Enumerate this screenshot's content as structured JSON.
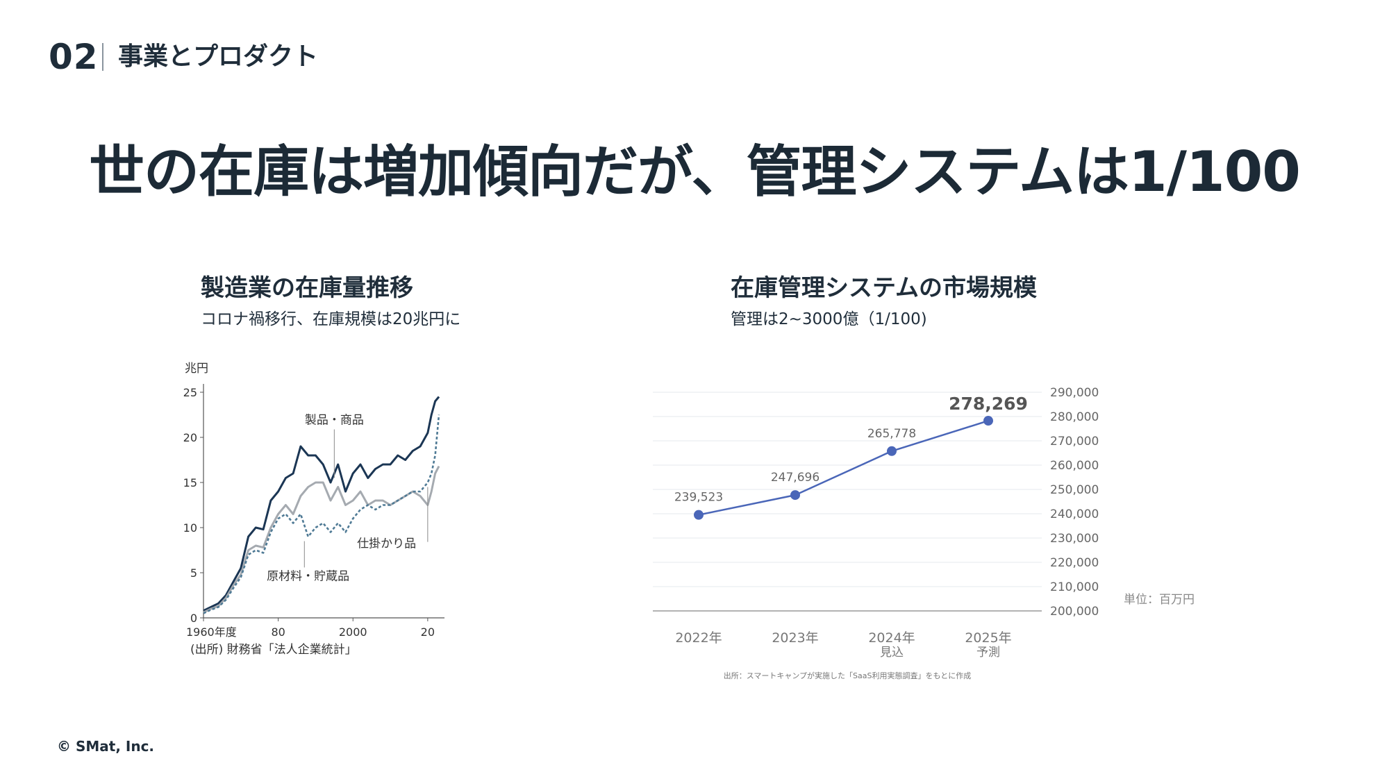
{
  "header": {
    "section_number": "02",
    "section_title": "事業とプロダクト"
  },
  "headline": "世の在庫は増加傾向だが、管理システムは1/100",
  "left_panel": {
    "title": "製造業の在庫量推移",
    "subtitle": "コロナ禍移行、在庫規模は20兆円に"
  },
  "right_panel": {
    "title": "在庫管理システムの市場規模",
    "subtitle": "管理は2~3000億（1/100)"
  },
  "footer": {
    "copyright": "© SMat, Inc."
  },
  "colors": {
    "text": "#1f2d3a",
    "dark_series": "#1b3654",
    "gray_series": "#a5aab0",
    "dotted_series": "#4f7a95",
    "market_line": "#4a66b8"
  },
  "chart_data": [
    {
      "type": "line",
      "title": "製造業の在庫量推移",
      "ylabel": "兆円",
      "ylim": [
        0,
        25
      ],
      "yticks": [
        0,
        5,
        10,
        15,
        20,
        25
      ],
      "xlim": [
        1960,
        2023
      ],
      "xtick_values": [
        1960,
        1980,
        2000,
        2020
      ],
      "xtick_labels": [
        "1960年度",
        "80",
        "2000",
        "20"
      ],
      "source": "(出所) 財務省「法人企業統計」",
      "x": [
        1960,
        1962,
        1964,
        1966,
        1968,
        1970,
        1972,
        1974,
        1976,
        1978,
        1980,
        1982,
        1984,
        1986,
        1988,
        1990,
        1992,
        1994,
        1996,
        1998,
        2000,
        2002,
        2004,
        2006,
        2008,
        2010,
        2012,
        2014,
        2016,
        2018,
        2020,
        2021,
        2022,
        2023
      ],
      "series": [
        {
          "name": "製品・商品",
          "label": "製品・商品",
          "label_value": 21.5,
          "label_x": 1995,
          "leader_y": 15.5,
          "values": [
            0.8,
            1.2,
            1.6,
            2.5,
            4,
            5.5,
            9,
            10,
            9.8,
            13,
            14,
            15.5,
            16,
            19,
            18,
            18,
            17,
            15,
            17,
            14,
            16,
            17,
            15.5,
            16.5,
            17,
            17,
            18,
            17.5,
            18.5,
            19,
            20.5,
            22.5,
            24,
            24.5
          ]
        },
        {
          "name": "仕掛かり品",
          "label": "仕掛かり品",
          "label_value": 7.8,
          "label_x": 2009,
          "leader_y": 14.5,
          "values": [
            0.6,
            1,
            1.3,
            2.2,
            3.6,
            4.8,
            7.5,
            8,
            7.8,
            10,
            11.5,
            12.5,
            11.5,
            13.5,
            14.5,
            15,
            15,
            13,
            14.5,
            12.5,
            13,
            14,
            12.5,
            13,
            13,
            12.5,
            13,
            13.5,
            14,
            13.5,
            12.5,
            14,
            16,
            16.8
          ]
        },
        {
          "name": "原材料・貯蔵品",
          "label": "原材料・貯蔵品",
          "label_value": 4.2,
          "label_x": 1988,
          "leader_y": 8.5,
          "values": [
            0.5,
            0.9,
            1.2,
            2,
            3.3,
            4.5,
            7,
            7.5,
            7.2,
            9.5,
            11,
            11.5,
            10.5,
            11.5,
            9,
            10,
            10.5,
            9.5,
            10.5,
            9.5,
            11,
            12,
            12.5,
            12,
            12.5,
            12.5,
            13,
            13.5,
            14,
            14,
            15,
            16,
            18,
            22.5
          ]
        }
      ]
    },
    {
      "type": "line",
      "title": "在庫管理システムの市場規模",
      "categories": [
        "2022年",
        "2023年",
        "2024年",
        "2025年"
      ],
      "category_notes": [
        "",
        "",
        "見込",
        "予測"
      ],
      "values": [
        239523,
        247696,
        265778,
        278269
      ],
      "value_labels": [
        "239,523",
        "247,696",
        "265,778",
        "278,269"
      ],
      "ylim": [
        200000,
        290000
      ],
      "yticks": [
        200000,
        210000,
        220000,
        230000,
        240000,
        250000,
        260000,
        270000,
        280000,
        290000
      ],
      "ytick_labels": [
        "200,000",
        "210,000",
        "220,000",
        "230,000",
        "240,000",
        "250,000",
        "260,000",
        "270,000",
        "280,000",
        "290,000"
      ],
      "axis_position": "right",
      "unit": "単位：百万円",
      "source": "出所：スマートキャンプが実施した「SaaS利用実態調査」をもとに作成"
    }
  ]
}
